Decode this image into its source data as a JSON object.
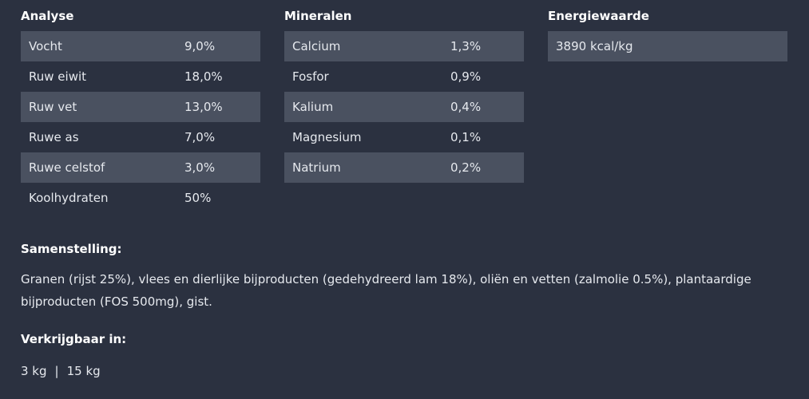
{
  "analyse": {
    "title": "Analyse",
    "rows": [
      {
        "label": "Vocht",
        "value": "9,0%"
      },
      {
        "label": "Ruw eiwit",
        "value": "18,0%"
      },
      {
        "label": "Ruw vet",
        "value": "13,0%"
      },
      {
        "label": "Ruwe as",
        "value": "7,0%"
      },
      {
        "label": "Ruwe celstof",
        "value": "3,0%"
      },
      {
        "label": "Koolhydraten",
        "value": "50%"
      }
    ]
  },
  "mineralen": {
    "title": "Mineralen",
    "rows": [
      {
        "label": "Calcium",
        "value": "1,3%"
      },
      {
        "label": "Fosfor",
        "value": "0,9%"
      },
      {
        "label": "Kalium",
        "value": "0,4%"
      },
      {
        "label": "Magnesium",
        "value": "0,1%"
      },
      {
        "label": "Natrium",
        "value": "0,2%"
      }
    ]
  },
  "energie": {
    "title": "Energiewaarde",
    "value": "3890 kcal/kg"
  },
  "samenstelling": {
    "title": "Samenstelling:",
    "text": "Granen (rijst 25%), vlees en dierlijke bijproducten (gedehydreerd lam 18%), oliën en vetten (zalmolie 0.5%), plantaardige bijproducten (FOS 500mg), gist."
  },
  "verkrijgbaar": {
    "title": "Verkrijgbaar in:",
    "sizes": [
      "3 kg",
      "15 kg"
    ],
    "separator": "|"
  },
  "colors": {
    "background": "#2b3140",
    "row_shade": "#4a5160",
    "text": "#e6e9ee"
  }
}
